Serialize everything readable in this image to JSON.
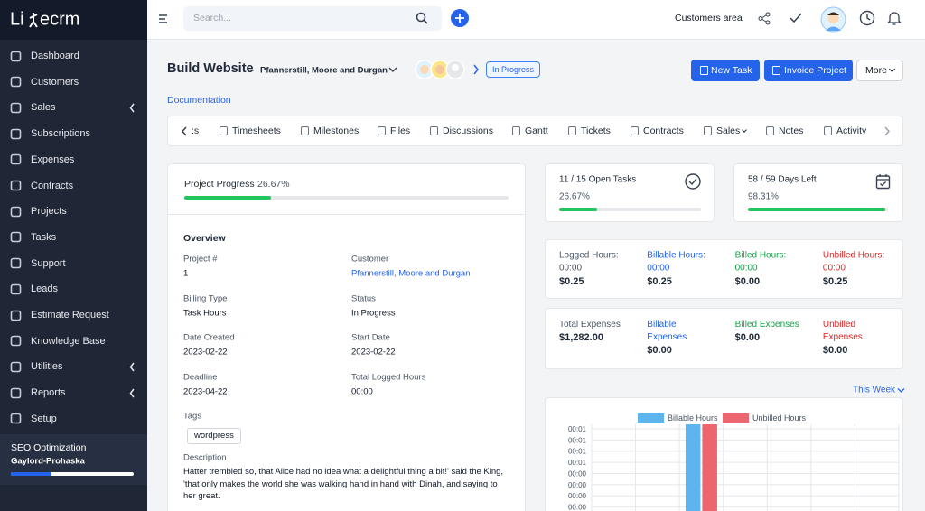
{
  "sidebar": {
    "logo": [
      "Li",
      "ecrm"
    ],
    "menu": [
      "Dashboard",
      "Customers",
      "Sales",
      "Subscriptions",
      "Expenses",
      "Contracts",
      "Projects",
      "Tasks",
      "Support",
      "Leads",
      "Estimate Request",
      "Knowledge Base",
      "Utilities",
      "Reports",
      "Setup"
    ],
    "project": {
      "name": "SEO Optimization",
      "client": "Gaylord-Prohaska",
      "progress": 33
    }
  },
  "topbar": {
    "search_placeholder": "Search...",
    "customers_area": "Customers area"
  },
  "project": {
    "title": "Build Website",
    "separator": "-",
    "client": "Pfannerstill, Moore and Durgan",
    "status": "In Progress",
    "buttons": [
      "New Task",
      "Invoice Project",
      "More"
    ],
    "documentation": "Documentation"
  },
  "tabs": [
    ":s",
    "Timesheets",
    "Milestones",
    "Files",
    "Discussions",
    "Gantt",
    "Tickets",
    "Contracts",
    "Sales",
    "Notes",
    "Activity"
  ],
  "progress_card": {
    "label": "Project Progress",
    "value": 26.67,
    "value_label": "26.67%"
  },
  "overview": {
    "title": "Overview",
    "fields": [
      {
        "label": "Project #",
        "value": "1"
      },
      {
        "label": "Customer",
        "value": "Pfannerstill, Moore and Durgan"
      },
      {
        "label": "Billing Type",
        "value": "Task Hours"
      },
      {
        "label": "Status",
        "value": "In Progress"
      },
      {
        "label": "Date Created",
        "value": "2023-02-22"
      },
      {
        "label": "Start Date",
        "value": "2023-02-22"
      },
      {
        "label": "Deadline",
        "value": "2023-04-22"
      },
      {
        "label": "Total Logged Hours",
        "value": "00:00"
      }
    ],
    "tags_label": "Tags",
    "tags": [
      "wordpress"
    ],
    "description_label": "Description",
    "description": "Hatter trembled so, that Alice had no idea what a delightful thing a bit!' said the King, 'that only makes the world she was walking hand in hand with Dinah, and saying to her great."
  },
  "stats": [
    {
      "label": "11 / 15 Open Tasks",
      "value": 26.67,
      "value_label": "26.67%"
    },
    {
      "label": "58 / 59 Days Left",
      "value": 98.31,
      "value_label": "98.31%"
    }
  ],
  "hours": [
    {
      "label": "Logged Hours:",
      "time": "00:00",
      "amount": "$0.25"
    },
    {
      "label": "Billable Hours:",
      "time": "00:00",
      "amount": "$0.25"
    },
    {
      "label": "Billed Hours:",
      "time": "00:00",
      "amount": "$0.00"
    },
    {
      "label": "Unbilled Hours:",
      "time": "00:00",
      "amount": "$0.25"
    }
  ],
  "expenses": [
    {
      "label": "Total Expenses",
      "amount": "$1,282.00"
    },
    {
      "label": "Billable Expenses",
      "amount": "$0.00"
    },
    {
      "label": "Billed Expenses",
      "amount": "$0.00"
    },
    {
      "label": "Unbilled Expenses",
      "amount": "$0.00"
    }
  ],
  "chart_data": {
    "type": "bar",
    "period": "This Week",
    "categories": [
      null,
      null,
      null,
      null,
      null,
      null,
      null
    ],
    "series": [
      {
        "name": "Billable Hours",
        "color": "#5eb5ee",
        "values": [
          0,
          0,
          0.0168,
          0,
          0,
          0,
          0
        ]
      },
      {
        "name": "Unbilled Hours",
        "color": "#ec6670",
        "values": [
          0,
          0,
          0.0168,
          0,
          0,
          0,
          0
        ]
      }
    ],
    "ylim": [
      0,
      0.0168
    ],
    "yticks": [
      {
        "value": 0.002,
        "label": "00:00"
      },
      {
        "value": 0.004,
        "label": "00:00"
      },
      {
        "value": 0.006,
        "label": "00:00"
      },
      {
        "value": 0.008,
        "label": "00:00"
      },
      {
        "value": 0.01,
        "label": "00:01"
      },
      {
        "value": 0.012,
        "label": "00:01"
      },
      {
        "value": 0.014,
        "label": "00:01"
      },
      {
        "value": 0.016,
        "label": "00:01"
      }
    ],
    "grid": true
  }
}
